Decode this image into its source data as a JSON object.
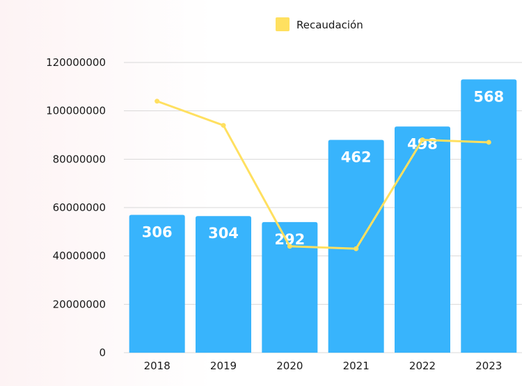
{
  "chart_data": {
    "type": "bar",
    "categories": [
      "2018",
      "2019",
      "2020",
      "2021",
      "2022",
      "2023"
    ],
    "series": [
      {
        "type": "bar",
        "values": [
          57000000,
          56500000,
          54000000,
          88000000,
          93500000,
          113000000
        ],
        "data_labels": [
          "306",
          "304",
          "292",
          "462",
          "498",
          "568"
        ],
        "color": "#38b4fc"
      },
      {
        "name": "Recaudación",
        "type": "line",
        "values": [
          104000000,
          94000000,
          44000000,
          43000000,
          88000000,
          87000000
        ],
        "color": "#ffe060"
      }
    ],
    "y_ticks": [
      "0",
      "20000000",
      "40000000",
      "60000000",
      "80000000",
      "100000000",
      "120000000"
    ],
    "ylim": [
      0,
      120000000
    ],
    "grid": true,
    "legend": "top-center"
  }
}
